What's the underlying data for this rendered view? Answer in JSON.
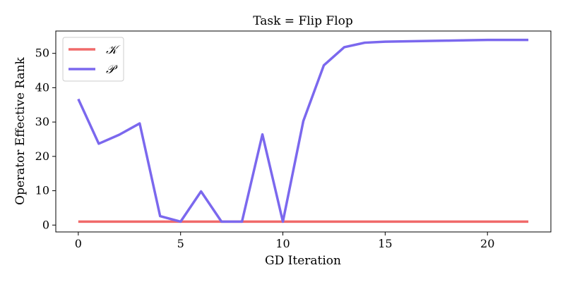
{
  "chart_data": {
    "type": "line",
    "title": "Task = Flip Flop",
    "xlabel": "GD Iteration",
    "ylabel": "Operator Effective Rank",
    "xlim": [
      -1.1,
      23.1
    ],
    "ylim": [
      -2.0,
      56.5
    ],
    "xticks": [
      0,
      5,
      10,
      15,
      20
    ],
    "yticks": [
      0,
      10,
      20,
      30,
      40,
      50
    ],
    "grid": false,
    "legend_position": "top-left",
    "series": [
      {
        "name": "𝒦",
        "color": "#f06a6a",
        "x": [
          0,
          1,
          2,
          3,
          4,
          5,
          6,
          7,
          8,
          9,
          10,
          11,
          12,
          13,
          14,
          15,
          16,
          17,
          18,
          19,
          20,
          21,
          22
        ],
        "y": [
          1,
          1,
          1,
          1,
          1,
          1,
          1,
          1,
          1,
          1,
          1,
          1,
          1,
          1,
          1,
          1,
          1,
          1,
          1,
          1,
          1,
          1,
          1
        ]
      },
      {
        "name": "𝒫",
        "color": "#7b68ee",
        "x": [
          0,
          1,
          2,
          3,
          4,
          5,
          6,
          7,
          8,
          9,
          10,
          11,
          12,
          13,
          14,
          15,
          16,
          17,
          18,
          19,
          20,
          21,
          22
        ],
        "y": [
          36.7,
          23.7,
          26.3,
          29.6,
          2.6,
          1.0,
          9.8,
          1.0,
          1.0,
          26.4,
          1.0,
          30.3,
          46.5,
          51.8,
          53.1,
          53.4,
          53.5,
          53.6,
          53.7,
          53.8,
          53.9,
          53.9,
          53.9
        ]
      }
    ]
  }
}
